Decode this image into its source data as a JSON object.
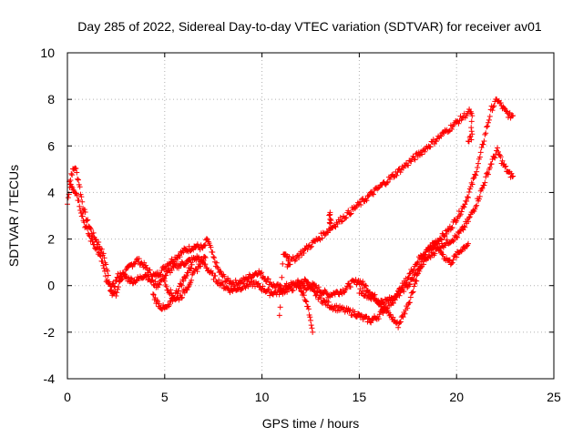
{
  "chart_data": {
    "type": "scatter",
    "title": "Day 285 of 2022, Sidereal Day-to-day VTEC variation (SDTVAR) for receiver av01",
    "xlabel": "GPS time / hours",
    "ylabel": "SDTVAR / TECUs",
    "xlim": [
      0,
      25
    ],
    "ylim": [
      -4,
      10
    ],
    "xticks": [
      0,
      5,
      10,
      15,
      20,
      25
    ],
    "yticks": [
      -4,
      -2,
      0,
      2,
      4,
      6,
      8,
      10
    ],
    "grid": true,
    "marker": "+",
    "series": [
      {
        "name": "SDTVAR",
        "color": "#ff0000",
        "curves": [
          [
            [
              0,
              3.5
            ],
            [
              0.2,
              4.8
            ],
            [
              0.4,
              5.1
            ],
            [
              0.6,
              4.4
            ],
            [
              0.8,
              3.4
            ],
            [
              1.0,
              2.8
            ],
            [
              1.3,
              2.2
            ],
            [
              1.6,
              1.8
            ],
            [
              1.9,
              1.2
            ],
            [
              2.1,
              0.4
            ],
            [
              2.3,
              -0.3
            ],
            [
              2.5,
              -0.4
            ],
            [
              2.7,
              0.2
            ],
            [
              3.0,
              0.6
            ],
            [
              3.3,
              0.9
            ],
            [
              3.6,
              1.1
            ],
            [
              3.9,
              0.9
            ],
            [
              4.2,
              0.6
            ],
            [
              4.5,
              0.4
            ],
            [
              4.8,
              0.6
            ],
            [
              5.1,
              0.9
            ],
            [
              5.4,
              1.1
            ],
            [
              5.7,
              1.3
            ],
            [
              6.0,
              1.5
            ],
            [
              6.3,
              1.6
            ],
            [
              6.6,
              1.7
            ],
            [
              7.0,
              1.6
            ],
            [
              7.2,
              2.0
            ],
            [
              7.5,
              1.2
            ],
            [
              7.8,
              0.6
            ],
            [
              8.2,
              0.2
            ],
            [
              8.6,
              0.1
            ],
            [
              9.0,
              0.2
            ],
            [
              9.4,
              0.4
            ],
            [
              9.8,
              0.6
            ],
            [
              10.2,
              0.3
            ],
            [
              10.6,
              0.0
            ],
            [
              11.0,
              -0.1
            ],
            [
              11.4,
              0.0
            ],
            [
              11.8,
              0.1
            ],
            [
              12.2,
              0.2
            ],
            [
              12.6,
              0.0
            ],
            [
              13.0,
              -0.2
            ],
            [
              13.4,
              -0.4
            ],
            [
              13.8,
              -0.3
            ],
            [
              14.2,
              -0.2
            ],
            [
              14.6,
              0.1
            ],
            [
              15.0,
              0.2
            ],
            [
              15.4,
              -0.1
            ],
            [
              15.8,
              -0.5
            ],
            [
              16.2,
              -0.9
            ],
            [
              16.6,
              -1.3
            ],
            [
              17.0,
              -1.7
            ],
            [
              17.3,
              -1.2
            ],
            [
              17.6,
              -0.6
            ],
            [
              17.9,
              0.2
            ],
            [
              18.2,
              1.0
            ],
            [
              18.5,
              1.5
            ],
            [
              18.8,
              1.8
            ],
            [
              19.1,
              2.0
            ],
            [
              19.4,
              2.2
            ],
            [
              19.7,
              2.5
            ],
            [
              20.0,
              2.9
            ],
            [
              20.3,
              3.3
            ],
            [
              20.6,
              3.9
            ],
            [
              20.9,
              4.6
            ],
            [
              21.2,
              5.5
            ],
            [
              21.5,
              6.6
            ],
            [
              21.8,
              7.6
            ],
            [
              22.1,
              8.0
            ],
            [
              22.4,
              7.6
            ],
            [
              22.7,
              7.3
            ],
            [
              22.9,
              7.3
            ]
          ],
          [
            [
              0.1,
              4.5
            ],
            [
              0.3,
              4.2
            ],
            [
              0.5,
              3.9
            ],
            [
              0.7,
              3.2
            ],
            [
              0.9,
              2.6
            ],
            [
              1.2,
              2.0
            ],
            [
              1.5,
              1.6
            ],
            [
              1.8,
              1.0
            ],
            [
              2.0,
              0.2
            ],
            [
              2.2,
              -0.1
            ],
            [
              2.4,
              0.0
            ],
            [
              2.6,
              0.4
            ],
            [
              2.8,
              0.5
            ],
            [
              3.1,
              0.3
            ],
            [
              3.4,
              0.2
            ],
            [
              3.7,
              0.3
            ],
            [
              4.0,
              0.5
            ],
            [
              4.3,
              0.2
            ],
            [
              4.6,
              0.0
            ],
            [
              4.9,
              0.3
            ],
            [
              5.2,
              0.6
            ],
            [
              5.5,
              0.8
            ],
            [
              5.8,
              0.9
            ],
            [
              6.1,
              1.0
            ],
            [
              6.4,
              1.1
            ],
            [
              6.7,
              1.2
            ],
            [
              7.0,
              1.0
            ],
            [
              7.3,
              0.6
            ],
            [
              7.6,
              0.3
            ],
            [
              8.0,
              0.0
            ],
            [
              8.4,
              -0.2
            ],
            [
              8.8,
              -0.1
            ],
            [
              9.2,
              0.0
            ],
            [
              9.6,
              0.1
            ],
            [
              10.0,
              -0.1
            ],
            [
              10.4,
              -0.3
            ],
            [
              10.8,
              -0.3
            ],
            [
              11.2,
              -0.2
            ],
            [
              11.6,
              -0.1
            ],
            [
              12.0,
              0.0
            ],
            [
              12.4,
              -0.1
            ],
            [
              12.8,
              -0.4
            ],
            [
              13.2,
              -0.7
            ],
            [
              13.6,
              -0.9
            ],
            [
              14.0,
              -1.0
            ],
            [
              14.4,
              -1.1
            ],
            [
              14.8,
              -1.2
            ],
            [
              15.2,
              -1.4
            ],
            [
              15.6,
              -1.5
            ],
            [
              16.0,
              -1.3
            ],
            [
              16.4,
              -0.9
            ],
            [
              16.8,
              -0.6
            ],
            [
              17.2,
              -0.2
            ],
            [
              17.6,
              0.1
            ],
            [
              18.0,
              0.6
            ],
            [
              18.4,
              1.1
            ],
            [
              18.8,
              1.4
            ],
            [
              19.2,
              1.7
            ],
            [
              19.6,
              1.9
            ],
            [
              20.0,
              2.1
            ],
            [
              20.3,
              2.4
            ],
            [
              20.6,
              2.8
            ],
            [
              20.9,
              3.3
            ],
            [
              21.2,
              3.9
            ],
            [
              21.5,
              4.6
            ],
            [
              21.8,
              5.3
            ],
            [
              22.1,
              5.8
            ],
            [
              22.4,
              5.2
            ],
            [
              22.7,
              4.8
            ],
            [
              22.9,
              4.7
            ]
          ],
          [
            [
              4.4,
              -0.4
            ],
            [
              4.6,
              -0.7
            ],
            [
              4.8,
              -0.9
            ],
            [
              5.0,
              -1.0
            ],
            [
              5.2,
              -0.9
            ],
            [
              5.4,
              -0.6
            ],
            [
              5.6,
              -0.3
            ],
            [
              5.8,
              0.0
            ],
            [
              6.0,
              0.3
            ],
            [
              6.2,
              0.6
            ],
            [
              6.4,
              0.9
            ]
          ],
          [
            [
              5.0,
              0.1
            ],
            [
              5.3,
              -0.3
            ],
            [
              5.6,
              -0.6
            ],
            [
              5.9,
              -0.4
            ],
            [
              6.2,
              0.0
            ],
            [
              6.5,
              0.5
            ],
            [
              6.8,
              0.9
            ],
            [
              7.1,
              1.2
            ]
          ],
          [
            [
              15.0,
              -0.2
            ],
            [
              15.4,
              -0.4
            ],
            [
              15.8,
              -0.6
            ],
            [
              16.2,
              -0.7
            ],
            [
              16.6,
              -0.6
            ],
            [
              17.0,
              -0.3
            ],
            [
              17.4,
              0.2
            ],
            [
              17.8,
              0.8
            ],
            [
              18.2,
              1.3
            ],
            [
              18.6,
              1.6
            ],
            [
              19.0,
              1.7
            ],
            [
              19.4,
              1.2
            ],
            [
              19.7,
              1.0
            ],
            [
              20.0,
              1.3
            ],
            [
              20.3,
              1.6
            ],
            [
              20.6,
              1.8
            ]
          ],
          [
            [
              12.0,
              -0.2
            ],
            [
              12.2,
              -0.6
            ],
            [
              12.4,
              -1.0
            ],
            [
              12.5,
              -1.5
            ],
            [
              12.6,
              -2.0
            ]
          ],
          [
            [
              13.5,
              3.2
            ],
            [
              13.5,
              2.9
            ],
            [
              13.5,
              2.6
            ],
            [
              13.45,
              3.0
            ],
            [
              13.55,
              2.8
            ]
          ],
          [
            [
              10.9,
              -1.4
            ],
            [
              11.1,
              1.4
            ],
            [
              11.4,
              1.2
            ],
            [
              11.3,
              0.9
            ],
            [
              20.7,
              7.5
            ],
            [
              20.8,
              7.2
            ],
            [
              20.75,
              6.8
            ],
            [
              20.8,
              6.4
            ],
            [
              20.6,
              6.2
            ]
          ]
        ]
      }
    ]
  }
}
